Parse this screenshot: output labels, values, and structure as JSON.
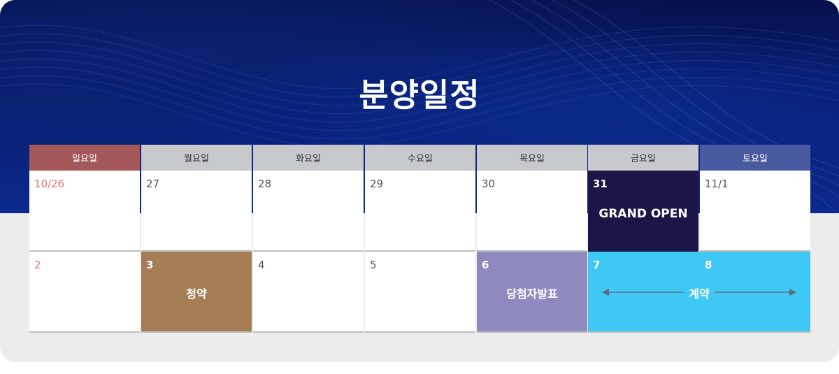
{
  "title": "분양일정",
  "weekdays": [
    "일요일",
    "월요일",
    "화요일",
    "수요일",
    "목요일",
    "금요일",
    "토요일"
  ],
  "week1": [
    "10/26",
    "27",
    "28",
    "29",
    "30",
    "31",
    "11/1"
  ],
  "week2": [
    "2",
    "3",
    "4",
    "5",
    "6",
    "7",
    "8"
  ],
  "events": {
    "grand_open": "GRAND OPEN",
    "apply": "청약",
    "winner": "당첨자발표",
    "contract": "계약"
  },
  "colors": {
    "sunday_header": "#a5585a",
    "saturday_header": "#4a5aa0",
    "weekday_header": "#c8c9cd",
    "grand_open": "#1b1548",
    "apply": "#a57d55",
    "winner": "#8e8ac0",
    "contract": "#40c8f4",
    "hero": "#0a1f78"
  },
  "icons": {
    "contract_range": "double-arrow-icon"
  }
}
